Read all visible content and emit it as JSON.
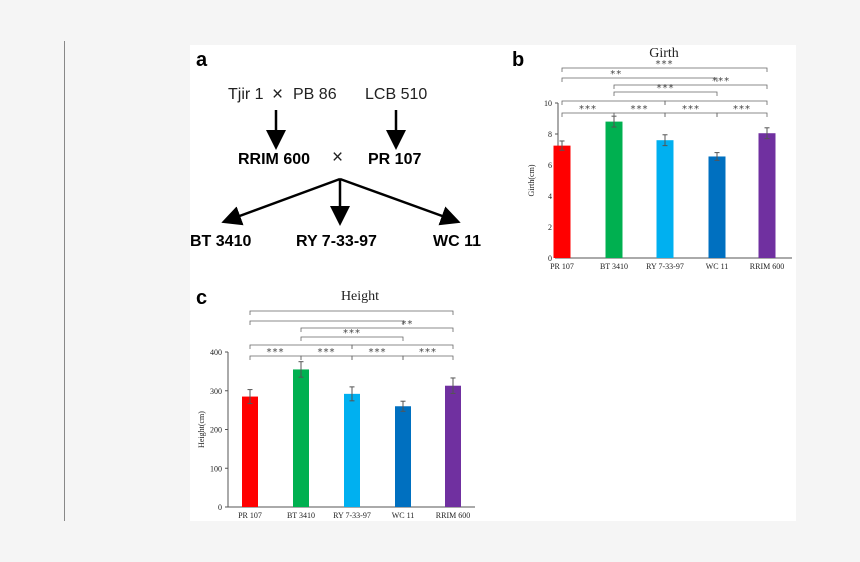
{
  "panel_a": {
    "label": "a",
    "parent1": "Tjir 1",
    "cross_symbol": "×",
    "parent2": "PB 86",
    "parent3": "LCB 510",
    "f1_left": "RRIM 600",
    "f1_right": "PR 107",
    "offspring": [
      "BT 3410",
      "RY 7-33-97",
      "WC 11"
    ]
  },
  "chart_data": [
    {
      "panel": "b",
      "type": "bar",
      "title": "Girth",
      "xlabel": "",
      "ylabel": "Girth(cm)",
      "ylim": [
        0,
        10
      ],
      "yticks": [
        "0",
        "2",
        "4",
        "6",
        "8",
        "10"
      ],
      "categories": [
        "PR 107",
        "BT 3410",
        "RY 7-33-97",
        "WC 11",
        "RRIM 600"
      ],
      "values": [
        7.25,
        8.8,
        7.6,
        6.55,
        8.05
      ],
      "errors": [
        0.3,
        0.35,
        0.35,
        0.25,
        0.35
      ],
      "colors": [
        "#ff0000",
        "#00b050",
        "#00b0f0",
        "#0070c0",
        "#7030a0"
      ],
      "significance": [
        {
          "from": 0,
          "to": 1,
          "level": 1,
          "label": "***"
        },
        {
          "from": 1,
          "to": 2,
          "level": 1,
          "label": "***"
        },
        {
          "from": 2,
          "to": 3,
          "level": 1,
          "label": "***"
        },
        {
          "from": 3,
          "to": 4,
          "level": 1,
          "label": "***"
        },
        {
          "from": 0,
          "to": 2,
          "level": 2,
          "label": ""
        },
        {
          "from": 2,
          "to": 4,
          "level": 2,
          "label": ""
        },
        {
          "from": 1,
          "to": 3,
          "level": 3,
          "label": "***"
        },
        {
          "from": 1,
          "to": 4,
          "level": 4,
          "label": "***"
        },
        {
          "from": 0,
          "to": 3,
          "level": 5,
          "label": "**"
        },
        {
          "from": 0,
          "to": 4,
          "level": 6,
          "label": "***"
        }
      ]
    },
    {
      "panel": "c",
      "type": "bar",
      "title": "Height",
      "xlabel": "",
      "ylabel": "Height(cm)",
      "ylim": [
        0,
        400
      ],
      "yticks": [
        "0",
        "100",
        "200",
        "300",
        "400"
      ],
      "categories": [
        "PR 107",
        "BT 3410",
        "RY 7-33-97",
        "WC 11",
        "RRIM 600"
      ],
      "values": [
        285,
        355,
        292,
        260,
        313
      ],
      "errors": [
        18,
        20,
        18,
        13,
        20
      ],
      "colors": [
        "#ff0000",
        "#00b050",
        "#00b0f0",
        "#0070c0",
        "#7030a0"
      ],
      "significance": [
        {
          "from": 0,
          "to": 1,
          "level": 1,
          "label": "***"
        },
        {
          "from": 1,
          "to": 2,
          "level": 1,
          "label": "***"
        },
        {
          "from": 2,
          "to": 3,
          "level": 1,
          "label": "***"
        },
        {
          "from": 3,
          "to": 4,
          "level": 1,
          "label": "***"
        },
        {
          "from": 0,
          "to": 2,
          "level": 2,
          "label": ""
        },
        {
          "from": 2,
          "to": 4,
          "level": 2,
          "label": ""
        },
        {
          "from": 1,
          "to": 3,
          "level": 3,
          "label": "***"
        },
        {
          "from": 1,
          "to": 4,
          "level": 4,
          "label": "**"
        },
        {
          "from": 0,
          "to": 3,
          "level": 5,
          "label": ""
        },
        {
          "from": 0,
          "to": 4,
          "level": 6,
          "label": ""
        }
      ]
    }
  ]
}
